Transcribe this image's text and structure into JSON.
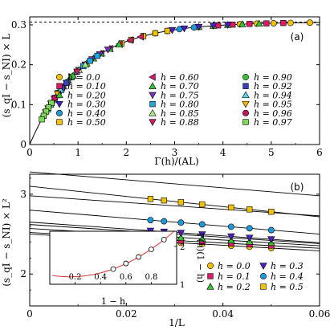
{
  "chart_data": [
    {
      "panel": "(a)",
      "type": "scatter",
      "xlabel": "Γ(h)/(AL)",
      "ylabel": "(s_qI − s_NI) × L",
      "xlim": [
        0,
        6
      ],
      "ylim": [
        0,
        0.32
      ],
      "xticks": [
        "0",
        "1",
        "2",
        "3",
        "4",
        "5",
        "6"
      ],
      "yticks": [
        "0",
        "0.1",
        "0.2",
        "0.3"
      ],
      "asymptote": 0.307,
      "curve": {
        "A": 0.307,
        "k": 0.92
      },
      "legend_rows": 6,
      "series": [
        {
          "name": "h = 0.0",
          "color": "#f2c200",
          "marker": "circle",
          "x": [
            5.8,
            5.4,
            5.05,
            4.7,
            4.35
          ]
        },
        {
          "name": "h = 0.10",
          "color": "#e0186a",
          "marker": "square",
          "x": [
            5.25,
            4.9,
            4.55,
            4.2,
            3.9
          ]
        },
        {
          "name": "h = 0.20",
          "color": "#39c339",
          "marker": "triangle-up",
          "x": [
            4.75,
            4.4,
            4.1,
            3.8,
            3.5
          ]
        },
        {
          "name": "h = 0.30",
          "color": "#4a1fbf",
          "marker": "triangle-down",
          "x": [
            4.1,
            3.8,
            3.5,
            3.2,
            2.95
          ]
        },
        {
          "name": "h = 0.40",
          "color": "#1f98d8",
          "marker": "circle",
          "x": [
            3.4,
            3.1,
            2.85,
            2.6,
            2.35
          ]
        },
        {
          "name": "h = 0.50",
          "color": "#f2c200",
          "marker": "square",
          "x": [
            2.85,
            2.6,
            2.35,
            2.1,
            1.9
          ]
        },
        {
          "name": "h = 0.60",
          "color": "#d4196a",
          "marker": "triangle-left",
          "x": [
            2.3,
            2.08,
            1.86,
            1.66,
            1.48
          ]
        },
        {
          "name": "h = 0.70",
          "color": "#39c339",
          "marker": "triangle-up",
          "x": [
            1.85,
            1.66,
            1.48,
            1.32,
            1.18
          ]
        },
        {
          "name": "h = 0.75",
          "color": "#7b2fbe",
          "marker": "triangle-down",
          "x": [
            1.62,
            1.45,
            1.29,
            1.15,
            1.02
          ]
        },
        {
          "name": "h = 0.80",
          "color": "#1fa8e0",
          "marker": "square",
          "x": [
            1.4,
            1.25,
            1.11,
            0.98,
            0.87
          ]
        },
        {
          "name": "h = 0.85",
          "color": "#aee68a",
          "marker": "triangle-up",
          "x": [
            1.15,
            1.02,
            0.9,
            0.8,
            0.7
          ]
        },
        {
          "name": "h = 0.88",
          "color": "#d81b60",
          "marker": "triangle-down",
          "x": [
            0.98,
            0.87,
            0.76,
            0.67,
            0.59
          ]
        },
        {
          "name": "h = 0.90",
          "color": "#39c339",
          "marker": "circle",
          "x": [
            0.88,
            0.78,
            0.68,
            0.6,
            0.52
          ]
        },
        {
          "name": "h = 0.92",
          "color": "#3a3fbf",
          "marker": "square",
          "x": [
            0.76,
            0.67,
            0.59,
            0.52,
            0.45
          ]
        },
        {
          "name": "h = 0.94",
          "color": "#5fd3e8",
          "marker": "triangle-up",
          "x": [
            0.64,
            0.56,
            0.49,
            0.43,
            0.37
          ]
        },
        {
          "name": "h = 0.95",
          "color": "#f2b800",
          "marker": "triangle-down",
          "x": [
            0.58,
            0.51,
            0.44,
            0.38,
            0.33
          ]
        },
        {
          "name": "h = 0.96",
          "color": "#c2185b",
          "marker": "circle",
          "x": [
            0.52,
            0.45,
            0.39,
            0.34,
            0.29
          ]
        },
        {
          "name": "h = 0.97",
          "color": "#7ed957",
          "marker": "square",
          "x": [
            0.45,
            0.39,
            0.34,
            0.29,
            0.25
          ]
        }
      ]
    },
    {
      "panel": "(b)",
      "type": "scatter",
      "xlabel": "1/L",
      "ylabel": "(s_qI − s_NI) × L²",
      "xlim": [
        0,
        0.06
      ],
      "ylim": [
        1.6,
        3.25
      ],
      "xticks": [
        "0",
        "0.02",
        "0.04",
        "0.06"
      ],
      "yticks": [
        "2",
        "3"
      ],
      "legend_cols": 2,
      "x": [
        0.025,
        0.0278,
        0.0313,
        0.0357,
        0.0417,
        0.0455,
        0.05
      ],
      "series": [
        {
          "name": "h = 0.0",
          "color": "#f2c200",
          "marker": "circle",
          "intercept": 2.5,
          "slope": -3.5,
          "y": [
            2.412,
            2.403,
            2.39,
            2.375,
            2.354,
            2.341,
            2.325
          ]
        },
        {
          "name": "h = 0.1",
          "color": "#e0186a",
          "marker": "square",
          "intercept": 2.52,
          "slope": -3.3,
          "y": [
            2.438,
            2.429,
            2.417,
            2.402,
            2.382,
            2.37,
            2.355
          ]
        },
        {
          "name": "h = 0.2",
          "color": "#39c339",
          "marker": "triangle-up",
          "intercept": 2.57,
          "slope": -3.6,
          "y": [
            2.48,
            2.47,
            2.457,
            2.441,
            2.42,
            2.406,
            2.39
          ]
        },
        {
          "name": "h = 0.3",
          "color": "#4a1fbf",
          "marker": "triangle-down",
          "intercept": 2.65,
          "slope": -4.3,
          "y": [
            2.542,
            2.53,
            2.515,
            2.496,
            2.471,
            2.454,
            2.435
          ]
        },
        {
          "name": "h = 0.4",
          "color": "#1f98d8",
          "marker": "circle",
          "intercept": 2.8,
          "slope": -5.0,
          "y": [
            2.675,
            2.661,
            2.644,
            2.622,
            2.592,
            2.573,
            2.55
          ]
        },
        {
          "name": "h = 0.5",
          "color": "#f2c200",
          "marker": "square",
          "intercept": 3.1,
          "slope": -6.4,
          "y": [
            2.94,
            2.922,
            2.9,
            2.872,
            2.833,
            2.809,
            2.78
          ]
        },
        {
          "name": "",
          "color": "#000000",
          "marker": "none",
          "intercept": 3.28,
          "slope": -5.0,
          "y": []
        },
        {
          "name": "",
          "color": "#000000",
          "marker": "none",
          "intercept": 2.98,
          "slope": -4.2,
          "y": []
        },
        {
          "name": "",
          "color": "#000000",
          "marker": "none",
          "intercept": 2.62,
          "slope": -4.0,
          "y": []
        }
      ]
    },
    {
      "panel": "inset",
      "type": "scatter",
      "xlabel": "1 − h",
      "ylabel": "Γ(h)(1 − h)",
      "xlim": [
        0,
        1
      ],
      "ylim": [
        1.0,
        2.4
      ],
      "xticks": [
        "0.2",
        "0.4",
        "0.6",
        "0.8"
      ],
      "yticks": [
        "1",
        "2"
      ],
      "points": [
        {
          "x": 0.5,
          "y": 1.4
        },
        {
          "x": 0.6,
          "y": 1.55
        },
        {
          "x": 0.7,
          "y": 1.72
        },
        {
          "x": 0.8,
          "y": 1.92
        },
        {
          "x": 0.9,
          "y": 2.18
        }
      ],
      "curve_color": "#e03030"
    }
  ]
}
